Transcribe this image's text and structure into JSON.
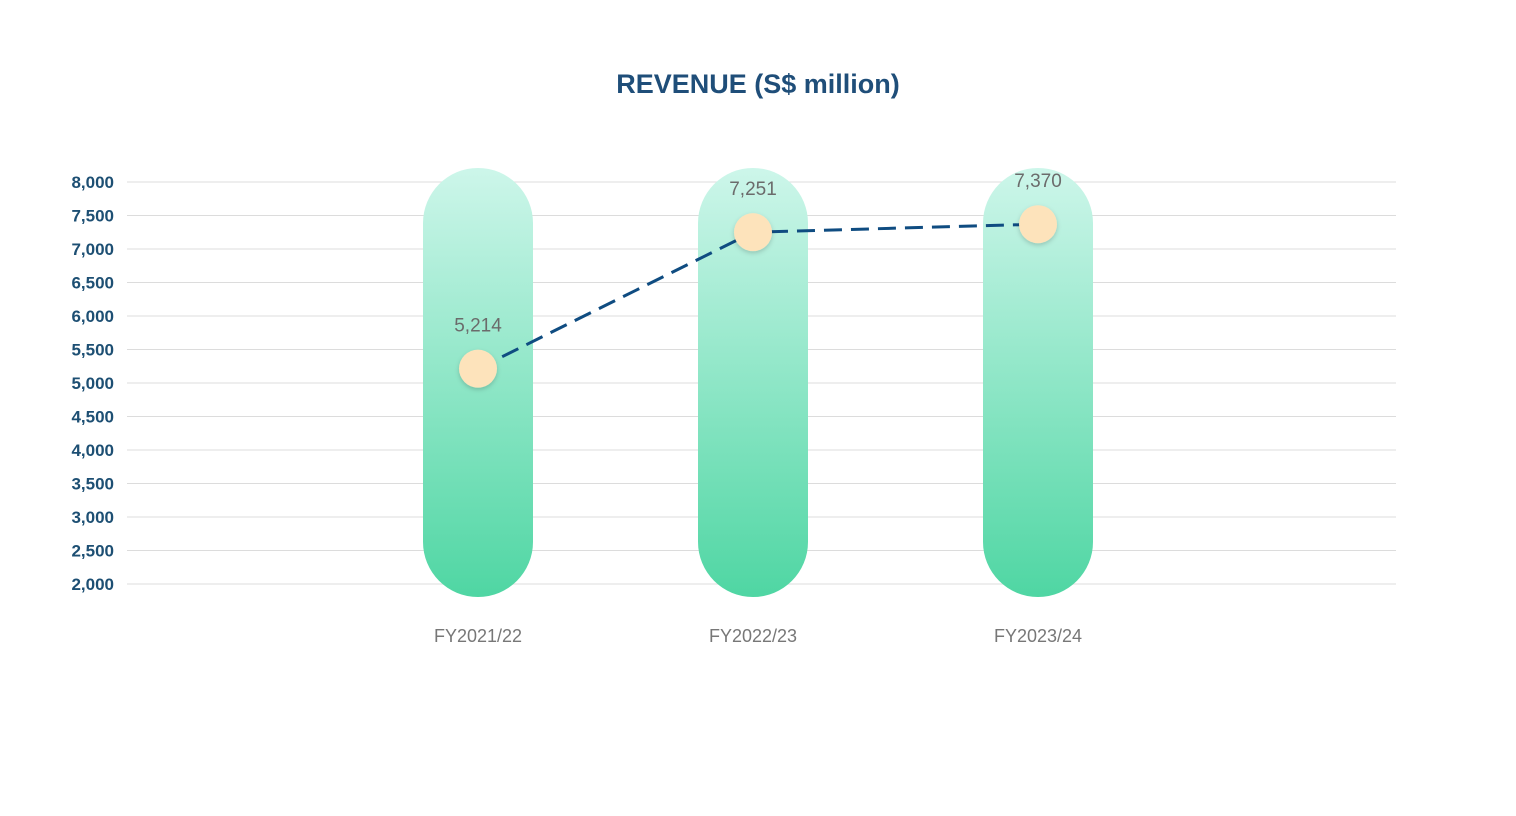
{
  "chart_data": {
    "type": "bar",
    "title": "REVENUE (S$ million)",
    "xlabel": "",
    "ylabel": "",
    "categories": [
      "FY2021/22",
      "FY2022/23",
      "FY2023/24"
    ],
    "values": [
      5214,
      7251,
      7370
    ],
    "value_labels": [
      "5,214",
      "7,251",
      "7,370"
    ],
    "yticks": [
      2000,
      2500,
      3000,
      3500,
      4000,
      4500,
      5000,
      5500,
      6000,
      6500,
      7000,
      7500,
      8000
    ],
    "ytick_labels": [
      "2,000",
      "2,500",
      "3,000",
      "3,500",
      "4,000",
      "4,500",
      "5,000",
      "5,500",
      "6,000",
      "6,500",
      "7,000",
      "7,500",
      "8,000"
    ],
    "ylim": [
      2000,
      8000
    ],
    "grid": true,
    "legend": "none",
    "overlay": "dashed line connecting values",
    "colors": {
      "bar_top": "#cdf6ea",
      "bar_bottom": "#4fd6a3",
      "marker_fill": "#fde3bb",
      "line": "#0f4c81",
      "title": "#1f4e79",
      "ytick": "#1d4f73",
      "xtick": "#777777",
      "data_label": "#6b6b6b",
      "grid": "#dcdcdc"
    }
  }
}
